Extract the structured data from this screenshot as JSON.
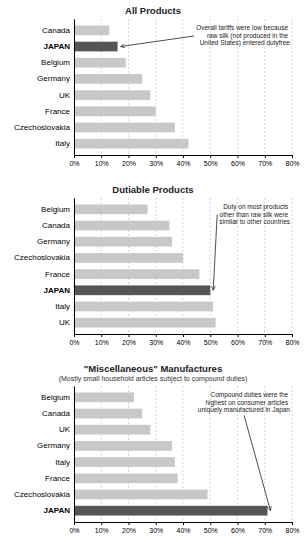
{
  "chart_data": [
    {
      "type": "bar",
      "orientation": "horizontal",
      "title": "All Products",
      "categories": [
        "Canada",
        "JAPAN",
        "Belgium",
        "Germany",
        "UK",
        "France",
        "Czechoslovakia",
        "Italy"
      ],
      "values": [
        13,
        16,
        19,
        25,
        28,
        30,
        37,
        42
      ],
      "colors": [
        "#c8c8c8",
        "#555555",
        "#c8c8c8",
        "#c8c8c8",
        "#c8c8c8",
        "#c8c8c8",
        "#c8c8c8",
        "#c8c8c8"
      ],
      "annotation": "Overall tariffs were low because\nraw silk (not produced in the\nUnited States) entered dutyfree",
      "xlim": [
        0,
        80
      ],
      "xticks": [
        {
          "value": 0,
          "label": "0%"
        },
        {
          "value": 10,
          "label": "10%"
        },
        {
          "value": 20,
          "label": "20%"
        },
        {
          "value": 30,
          "label": "30%"
        },
        {
          "value": 40,
          "label": "40%"
        },
        {
          "value": 50,
          "label": "50%"
        },
        {
          "value": 60,
          "label": "60%"
        },
        {
          "value": 70,
          "label": "70%"
        },
        {
          "value": 80,
          "label": "80%"
        }
      ],
      "grid": true
    },
    {
      "type": "bar",
      "orientation": "horizontal",
      "title": "Dutiable Products",
      "categories": [
        "Belgium",
        "Canada",
        "Germany",
        "Czechoslovakia",
        "France",
        "JAPAN",
        "Italy",
        "UK"
      ],
      "values": [
        27,
        35,
        36,
        40,
        46,
        50,
        51,
        52
      ],
      "colors": [
        "#c8c8c8",
        "#c8c8c8",
        "#c8c8c8",
        "#c8c8c8",
        "#c8c8c8",
        "#555555",
        "#c8c8c8",
        "#c8c8c8"
      ],
      "annotation": "Duty on most products\nother than raw silk were\nsimilar to other countries",
      "xlim": [
        0,
        80
      ],
      "xticks": [
        {
          "value": 0,
          "label": "0%"
        },
        {
          "value": 10,
          "label": "10%"
        },
        {
          "value": 20,
          "label": "20%"
        },
        {
          "value": 30,
          "label": "30%"
        },
        {
          "value": 40,
          "label": "40%"
        },
        {
          "value": 50,
          "label": "50%"
        },
        {
          "value": 60,
          "label": "60%"
        },
        {
          "value": 70,
          "label": "70%"
        },
        {
          "value": 80,
          "label": "80%"
        }
      ],
      "grid": true
    },
    {
      "type": "bar",
      "orientation": "horizontal",
      "title": "\"Miscellaneous\" Manufactures",
      "subtitle": "(Mostly small household articles subject to compound duties)",
      "categories": [
        "Belgium",
        "Canada",
        "UK",
        "Germany",
        "Italy",
        "France",
        "Czechoslovakia",
        "JAPAN"
      ],
      "values": [
        22,
        25,
        28,
        36,
        37,
        38,
        49,
        71
      ],
      "colors": [
        "#c8c8c8",
        "#c8c8c8",
        "#c8c8c8",
        "#c8c8c8",
        "#c8c8c8",
        "#c8c8c8",
        "#c8c8c8",
        "#555555"
      ],
      "annotation": "Compound duties were the\nhighest on consumer articles\nuniquely manufactured in Japan",
      "xlim": [
        0,
        80
      ],
      "xticks": [
        {
          "value": 0,
          "label": "0%"
        },
        {
          "value": 10,
          "label": "10%"
        },
        {
          "value": 20,
          "label": "20%"
        },
        {
          "value": 30,
          "label": "30%"
        },
        {
          "value": 40,
          "label": "40%"
        },
        {
          "value": 50,
          "label": "50%"
        },
        {
          "value": 60,
          "label": "60%"
        },
        {
          "value": 70,
          "label": "70%"
        },
        {
          "value": 80,
          "label": "80%"
        }
      ],
      "grid": true
    }
  ]
}
